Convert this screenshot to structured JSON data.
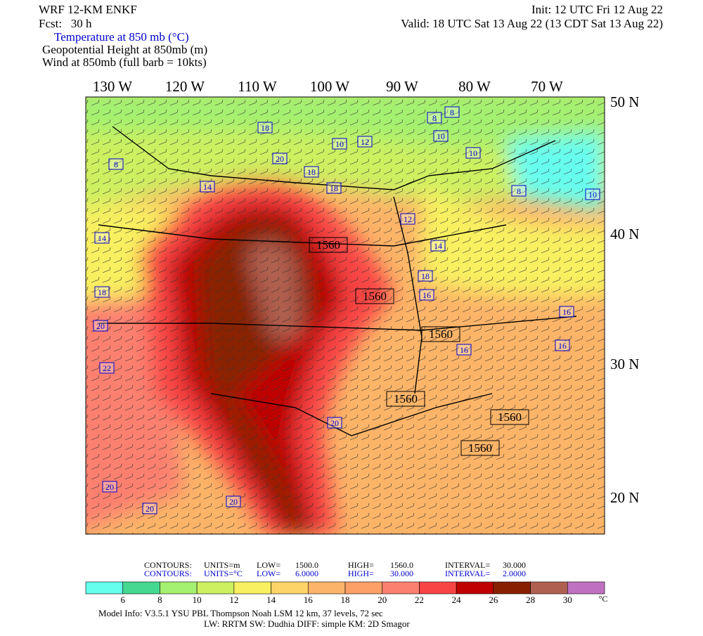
{
  "header": {
    "model": "WRF 12-KM ENKF",
    "fcst": "Fcst:   30 h",
    "init": "Init: 12 UTC Fri 12 Aug 22",
    "valid": "Valid: 18 UTC Sat 13 Aug 22 (13 CDT Sat 13 Aug 22)",
    "fields": [
      "Temperature at 850 mb (°C)",
      "Geopotential Height at 850mb (m)",
      "Wind at 850mb (full barb = 10kts)"
    ]
  },
  "map": {
    "lon_labels": [
      "130 W",
      "120 W",
      "110 W",
      "100 W",
      "90 W",
      "80 W",
      "70 W"
    ],
    "lat_labels": [
      "50 N",
      "40 N",
      "30 N",
      "20 N"
    ],
    "height_labels": [
      1560,
      1560,
      1560,
      1560,
      1560,
      1560
    ],
    "temp_labels": [
      18,
      20,
      18,
      18,
      12,
      10,
      8,
      8,
      10,
      10,
      8,
      8,
      10,
      14,
      12,
      14,
      18,
      16,
      16,
      18,
      20,
      22,
      20,
      20,
      20,
      20,
      16,
      16,
      14
    ]
  },
  "contour_info": [
    [
      "CONTOURS:",
      "UNITS=m",
      "LOW=",
      "1500.0",
      "HIGH=",
      "1560.0",
      "INTERVAL=",
      "30.000"
    ],
    [
      "CONTOURS:",
      "UNITS=°C",
      "LOW=",
      "6.0000",
      "HIGH=",
      "30.000",
      "INTERVAL=",
      "2.0000"
    ]
  ],
  "colorbar": {
    "colors": [
      "#66ffee",
      "#44d890",
      "#a4f070",
      "#ccf060",
      "#f8f060",
      "#fcd468",
      "#fcb468",
      "#fca068",
      "#fc8070",
      "#f84444",
      "#c00000",
      "#882000",
      "#b06050",
      "#c070c0"
    ],
    "labels": [
      6,
      8,
      10,
      12,
      14,
      16,
      18,
      20,
      22,
      24,
      26,
      28,
      30
    ],
    "unit": "°C"
  },
  "footer": [
    "Model Info: V3.5.1        YSU PBL  Thompson     Noah LSM  12 km,    37 levels,    72 sec",
    "LW: RRTM SW: Dudhia  DIFF: simple KM: 2D Smagor"
  ]
}
